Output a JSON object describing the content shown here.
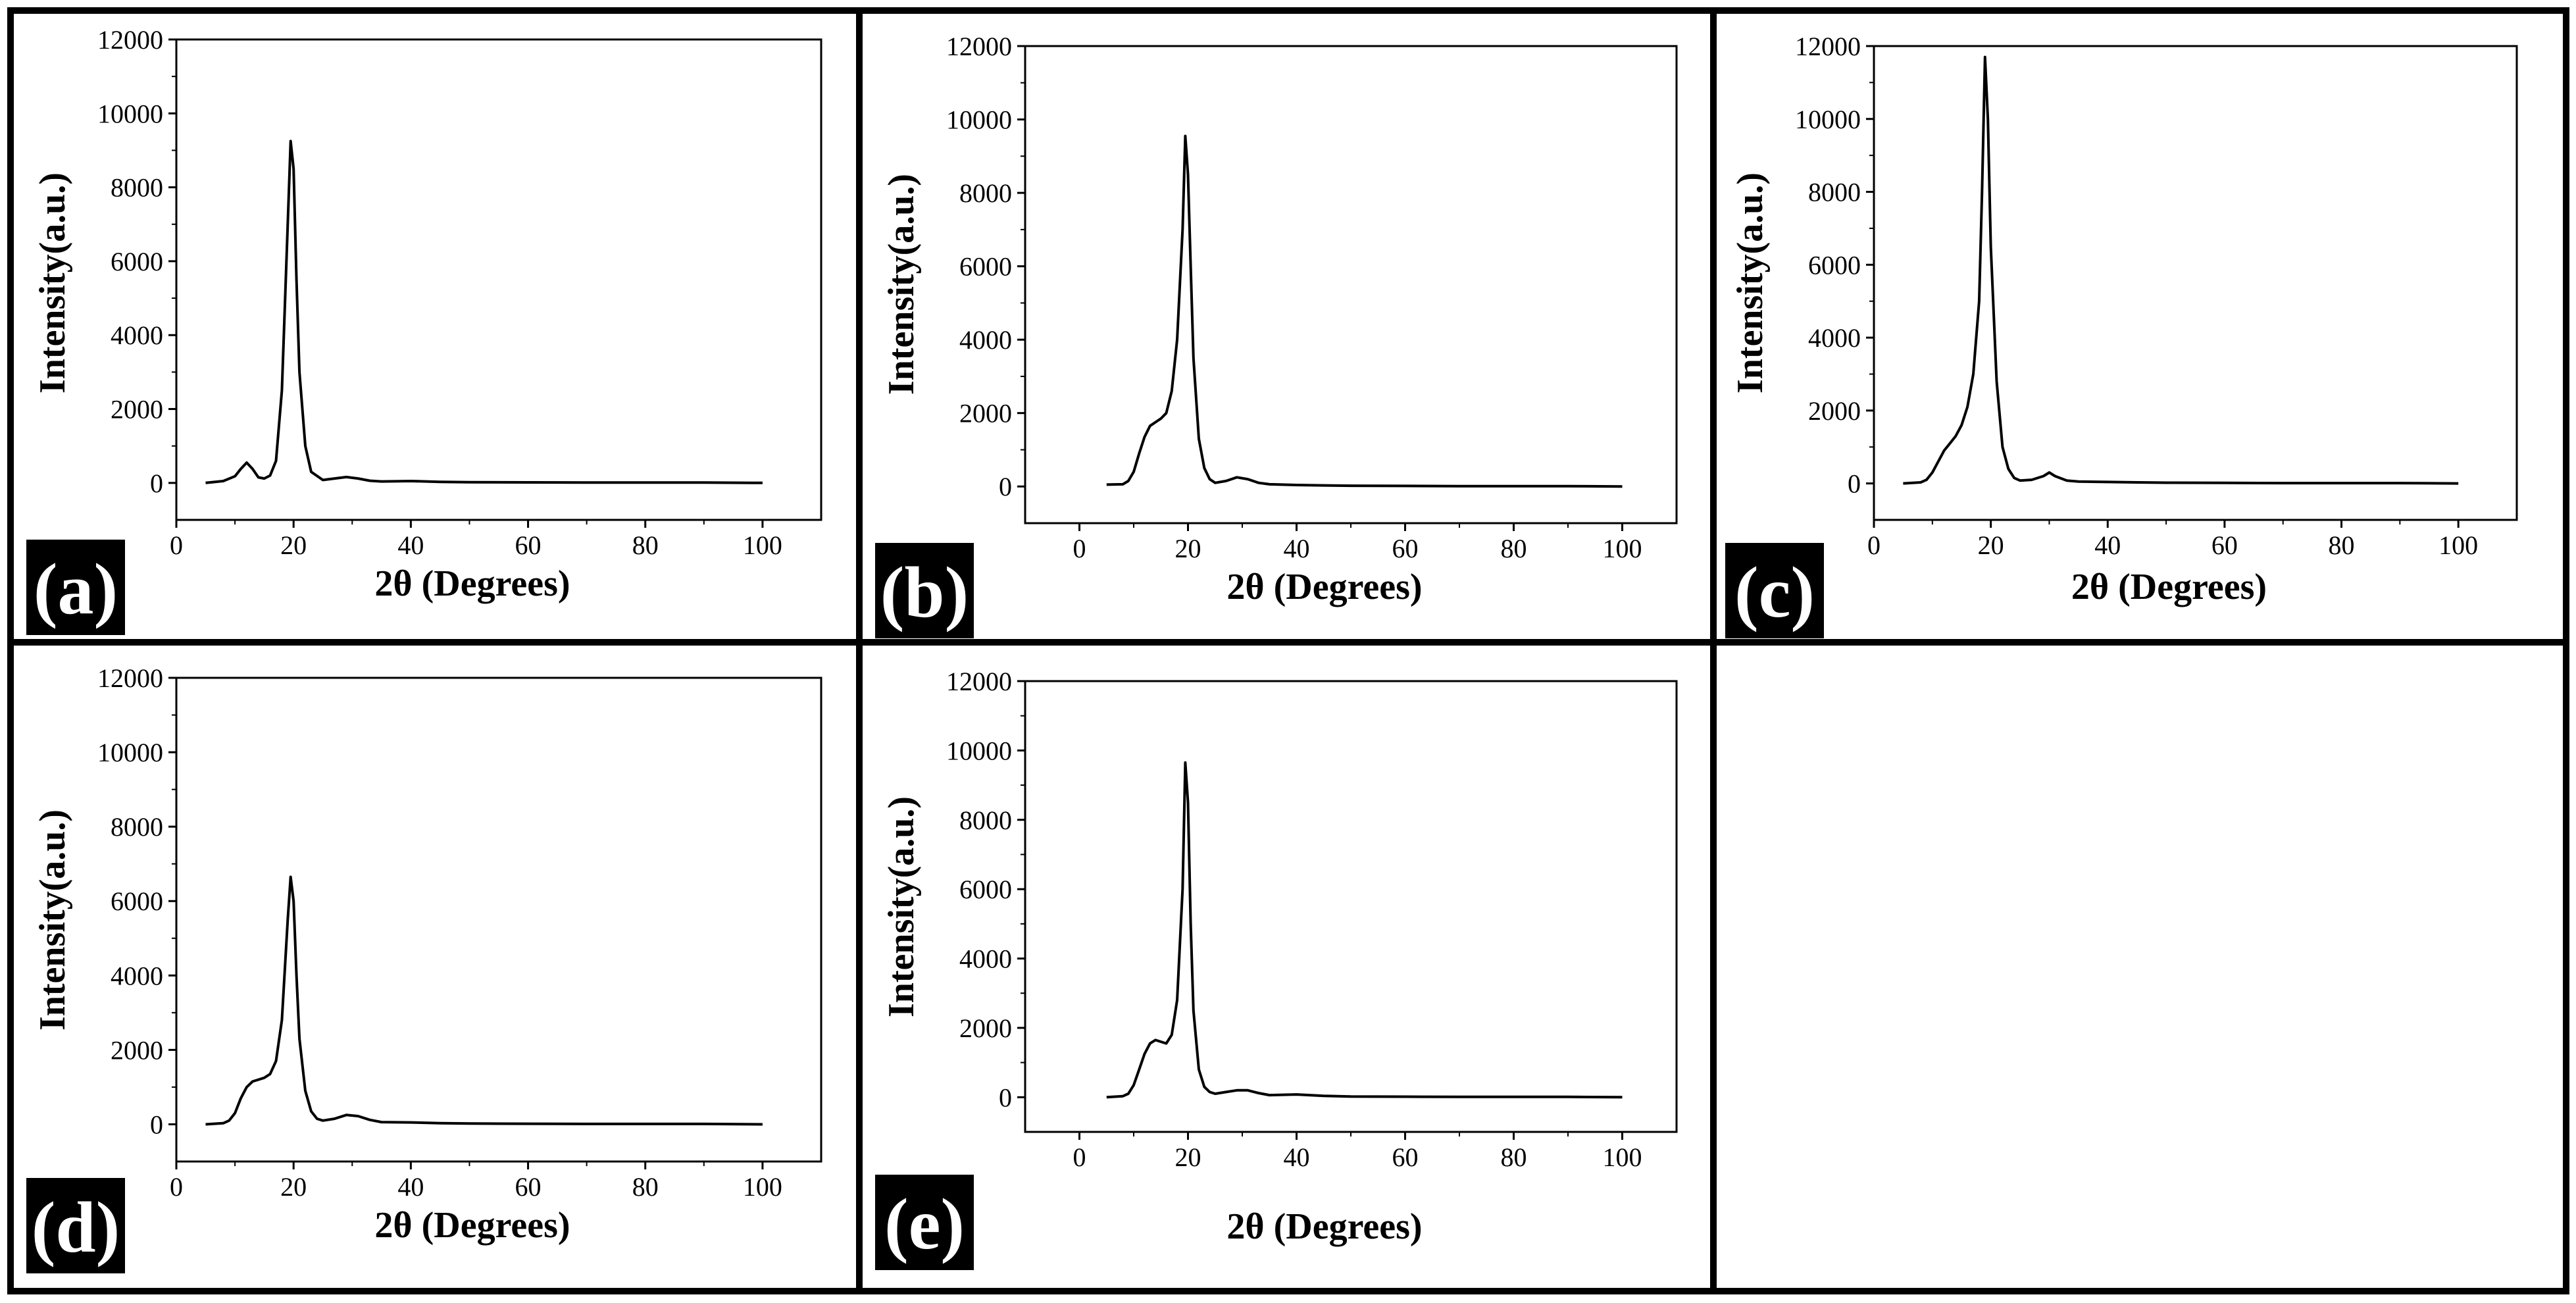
{
  "chart_data": [
    {
      "type": "line",
      "panel": "(a)",
      "xlabel": "2θ (Degrees)",
      "ylabel": "Intensity(a.u.)",
      "xlim": [
        0,
        110
      ],
      "ylim": [
        -1000,
        12000
      ],
      "xticks": [
        0,
        20,
        40,
        60,
        80,
        100
      ],
      "yticks": [
        0,
        2000,
        4000,
        6000,
        8000,
        10000,
        12000
      ],
      "series": [
        {
          "name": "a",
          "x": [
            5,
            8,
            10,
            11,
            12,
            13,
            14,
            15,
            16,
            17,
            18,
            19,
            19.5,
            20,
            20.5,
            21,
            22,
            23,
            25,
            27,
            29,
            31,
            33,
            35,
            40,
            45,
            50,
            60,
            70,
            80,
            90,
            100
          ],
          "y": [
            0,
            50,
            180,
            380,
            550,
            380,
            150,
            120,
            200,
            600,
            2500,
            7000,
            9250,
            8500,
            5500,
            3000,
            1000,
            300,
            80,
            120,
            160,
            120,
            60,
            40,
            50,
            30,
            20,
            15,
            10,
            10,
            10,
            0
          ]
        }
      ]
    },
    {
      "type": "line",
      "panel": "(b)",
      "xlabel": "2θ (Degrees)",
      "ylabel": "Intensity(a.u.)",
      "xlim": [
        -10,
        110
      ],
      "ylim": [
        -1000,
        12000
      ],
      "xticks": [
        0,
        20,
        40,
        60,
        80,
        100
      ],
      "yticks": [
        0,
        2000,
        4000,
        6000,
        8000,
        10000,
        12000
      ],
      "series": [
        {
          "name": "b",
          "x": [
            5,
            8,
            9,
            10,
            11,
            12,
            13,
            14,
            15,
            16,
            17,
            18,
            19,
            19.5,
            20,
            20.5,
            21,
            22,
            23,
            24,
            25,
            27,
            29,
            31,
            33,
            35,
            40,
            45,
            50,
            60,
            70,
            80,
            90,
            100
          ],
          "y": [
            50,
            60,
            150,
            400,
            900,
            1350,
            1650,
            1750,
            1850,
            2000,
            2600,
            4000,
            7000,
            9550,
            8500,
            6000,
            3500,
            1300,
            500,
            200,
            100,
            150,
            250,
            200,
            100,
            60,
            40,
            30,
            20,
            15,
            10,
            10,
            10,
            0
          ]
        }
      ]
    },
    {
      "type": "line",
      "panel": "(c)",
      "xlabel": "2θ (Degrees)",
      "ylabel": "Intensity(a.u.)",
      "xlim": [
        0,
        110
      ],
      "ylim": [
        -1000,
        12000
      ],
      "xticks": [
        0,
        20,
        40,
        60,
        80,
        100
      ],
      "yticks": [
        0,
        2000,
        4000,
        6000,
        8000,
        10000,
        12000
      ],
      "series": [
        {
          "name": "c",
          "x": [
            5,
            8,
            9,
            10,
            11,
            12,
            13,
            14,
            15,
            16,
            17,
            18,
            18.5,
            19,
            19.5,
            20,
            21,
            22,
            23,
            24,
            25,
            27,
            29,
            30,
            31,
            33,
            35,
            40,
            45,
            50,
            60,
            70,
            80,
            90,
            100
          ],
          "y": [
            0,
            30,
            100,
            300,
            600,
            900,
            1100,
            1300,
            1600,
            2100,
            3000,
            5000,
            8000,
            11700,
            10000,
            6500,
            2800,
            1000,
            400,
            150,
            80,
            100,
            200,
            300,
            200,
            80,
            50,
            40,
            30,
            20,
            15,
            10,
            10,
            10,
            0
          ]
        }
      ]
    },
    {
      "type": "line",
      "panel": "(d)",
      "xlabel": "2θ (Degrees)",
      "ylabel": "Intensity(a.u.)",
      "xlim": [
        0,
        110
      ],
      "ylim": [
        -1000,
        12000
      ],
      "xticks": [
        0,
        20,
        40,
        60,
        80,
        100
      ],
      "yticks": [
        0,
        2000,
        4000,
        6000,
        8000,
        10000,
        12000
      ],
      "series": [
        {
          "name": "d",
          "x": [
            5,
            8,
            9,
            10,
            11,
            12,
            13,
            14,
            15,
            16,
            17,
            18,
            19,
            19.5,
            20,
            20.5,
            21,
            22,
            23,
            24,
            25,
            27,
            29,
            31,
            33,
            35,
            40,
            45,
            50,
            60,
            70,
            80,
            90,
            100
          ],
          "y": [
            0,
            30,
            100,
            300,
            700,
            1000,
            1150,
            1200,
            1250,
            1350,
            1700,
            2800,
            5500,
            6650,
            6000,
            4000,
            2300,
            900,
            350,
            150,
            100,
            150,
            250,
            220,
            120,
            60,
            50,
            30,
            20,
            15,
            10,
            10,
            10,
            0
          ]
        }
      ]
    },
    {
      "type": "line",
      "panel": "(e)",
      "xlabel": "2θ (Degrees)",
      "ylabel": "Intensity(a.u.)",
      "xlim": [
        -10,
        110
      ],
      "ylim": [
        -1000,
        12000
      ],
      "xticks": [
        0,
        20,
        40,
        60,
        80,
        100
      ],
      "yticks": [
        0,
        2000,
        4000,
        6000,
        8000,
        10000,
        12000
      ],
      "series": [
        {
          "name": "e",
          "x": [
            5,
            8,
            9,
            10,
            11,
            12,
            13,
            14,
            15,
            16,
            17,
            18,
            19,
            19.5,
            20,
            20.5,
            21,
            22,
            23,
            24,
            25,
            27,
            29,
            31,
            33,
            35,
            40,
            45,
            50,
            60,
            70,
            80,
            90,
            100
          ],
          "y": [
            0,
            30,
            100,
            350,
            800,
            1250,
            1550,
            1650,
            1600,
            1550,
            1800,
            2800,
            6000,
            9650,
            8500,
            5000,
            2500,
            800,
            300,
            150,
            100,
            150,
            200,
            200,
            120,
            60,
            80,
            40,
            20,
            15,
            10,
            10,
            10,
            0
          ]
        }
      ]
    }
  ]
}
